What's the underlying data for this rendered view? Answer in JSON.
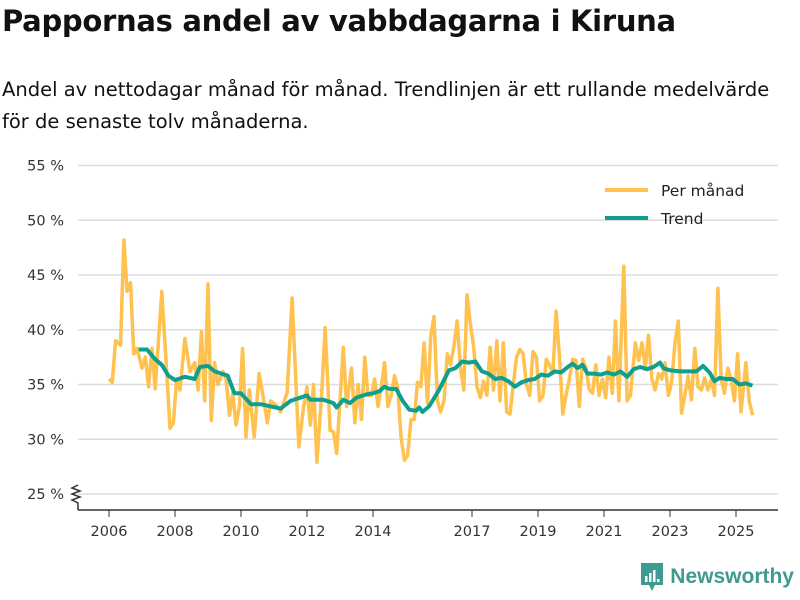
{
  "title": "Pappornas andel av vabbdagarna i Kiruna",
  "subtitle": "Andel av nettodagar månad för månad. Trendlinjen är ett rullande medelvärde för de senaste tolv månaderna.",
  "brand": "Newsworthy",
  "colors": {
    "monthly": "#ffc14f",
    "trend": "#0e9f8f",
    "grid": "#dddddd",
    "axis": "#333333"
  },
  "chart_data": {
    "type": "line",
    "title": "Pappornas andel av vabbdagarna i Kiruna",
    "xlabel": "",
    "ylabel": "",
    "ylim": [
      25,
      55
    ],
    "xlim": [
      2005.05,
      2026.3
    ],
    "yticks": [
      25,
      30,
      35,
      40,
      45,
      50,
      55
    ],
    "ytick_labels": [
      "25 %",
      "30 %",
      "35 %",
      "40 %",
      "45 %",
      "50 %",
      "55 %"
    ],
    "xticks": [
      2006,
      2008,
      2010,
      2012,
      2014,
      2017,
      2019,
      2021,
      2023,
      2025
    ],
    "xtick_labels": [
      "2006",
      "2008",
      "2010",
      "2012",
      "2014",
      "2017",
      "2019",
      "2021",
      "2023",
      "2025"
    ],
    "grid": true,
    "legend_position": "top-right",
    "series": [
      {
        "name": "Per månad",
        "x": [
          2006.0,
          2006.1,
          2006.2,
          2006.35,
          2006.45,
          2006.55,
          2006.65,
          2006.75,
          2006.85,
          2007.0,
          2007.1,
          2007.2,
          2007.3,
          2007.4,
          2007.6,
          2007.75,
          2007.85,
          2007.95,
          2008.05,
          2008.15,
          2008.3,
          2008.45,
          2008.6,
          2008.7,
          2008.8,
          2008.9,
          2009.0,
          2009.1,
          2009.2,
          2009.3,
          2009.45,
          2009.55,
          2009.65,
          2009.75,
          2009.85,
          2009.95,
          2010.05,
          2010.15,
          2010.25,
          2010.4,
          2010.55,
          2010.7,
          2010.8,
          2010.9,
          2011.1,
          2011.2,
          2011.4,
          2011.55,
          2011.75,
          2011.9,
          2012.0,
          2012.1,
          2012.2,
          2012.3,
          2012.45,
          2012.55,
          2012.7,
          2012.8,
          2012.9,
          2013.0,
          2013.1,
          2013.2,
          2013.35,
          2013.45,
          2013.55,
          2013.65,
          2013.75,
          2013.85,
          2013.95,
          2014.05,
          2014.15,
          2014.25,
          2014.35,
          2014.45,
          2014.55,
          2014.65,
          2014.75,
          2014.85,
          2014.95,
          2015.05,
          2015.15,
          2015.25,
          2015.35,
          2015.45,
          2015.55,
          2015.65,
          2015.75,
          2015.85,
          2015.95,
          2016.05,
          2016.15,
          2016.25,
          2016.35,
          2016.45,
          2016.55,
          2016.65,
          2016.75,
          2016.85,
          2016.95,
          2017.05,
          2017.15,
          2017.25,
          2017.35,
          2017.45,
          2017.55,
          2017.65,
          2017.75,
          2017.85,
          2017.95,
          2018.05,
          2018.15,
          2018.25,
          2018.35,
          2018.45,
          2018.55,
          2018.65,
          2018.75,
          2018.85,
          2018.95,
          2019.05,
          2019.15,
          2019.25,
          2019.35,
          2019.45,
          2019.55,
          2019.65,
          2019.75,
          2019.85,
          2019.95,
          2020.05,
          2020.15,
          2020.25,
          2020.35,
          2020.45,
          2020.55,
          2020.65,
          2020.75,
          2020.85,
          2020.95,
          2021.05,
          2021.15,
          2021.25,
          2021.35,
          2021.45,
          2021.6,
          2021.7,
          2021.8,
          2021.95,
          2022.05,
          2022.15,
          2022.25,
          2022.35,
          2022.45,
          2022.55,
          2022.65,
          2022.75,
          2022.85,
          2022.95,
          2023.05,
          2023.15,
          2023.25,
          2023.35,
          2023.45,
          2023.55,
          2023.65,
          2023.75,
          2023.85,
          2023.95,
          2024.05,
          2024.15,
          2024.25,
          2024.35,
          2024.45,
          2024.55,
          2024.65,
          2024.75,
          2024.85,
          2024.95,
          2025.05,
          2025.15,
          2025.3,
          2025.4,
          2025.5
        ],
        "values": [
          35.5,
          35.2,
          39,
          38.6,
          48.2,
          43.5,
          44.3,
          37.8,
          38.3,
          36.5,
          37.5,
          34.8,
          38.3,
          34.6,
          43.5,
          36,
          31,
          31.5,
          35.5,
          34.5,
          39.2,
          36.2,
          37,
          34.5,
          39.8,
          33.5,
          44.2,
          31.7,
          37,
          35,
          36.2,
          35.5,
          32.2,
          34.2,
          31.3,
          33,
          38.3,
          30.2,
          34.5,
          30.2,
          36,
          33.4,
          31.5,
          33.5,
          33,
          32.5,
          34.3,
          42.9,
          29.3,
          33,
          34.8,
          31.3,
          35,
          27.9,
          34.5,
          40.2,
          30.8,
          30.7,
          28.7,
          33.5,
          38.4,
          33,
          36.5,
          31.5,
          35,
          31.8,
          37.5,
          34,
          34,
          35.5,
          33,
          34.8,
          37,
          33,
          34,
          35.8,
          34.7,
          30.2,
          28.1,
          28.5,
          31.8,
          31.8,
          35.2,
          34.8,
          38.8,
          33.3,
          39.5,
          41.2,
          33.5,
          32.5,
          33.5,
          37.8,
          36.8,
          38.5,
          40.8,
          36.5,
          34.5,
          43.2,
          40.5,
          38.5,
          34.8,
          33.8,
          35.3,
          34,
          38.4,
          34.5,
          39,
          33.5,
          38.8,
          32.5,
          32.3,
          35,
          37.5,
          38.2,
          37.8,
          35,
          34,
          38,
          37.5,
          33.5,
          34,
          37.3,
          36.8,
          36,
          41.7,
          37.5,
          32.3,
          34,
          35.5,
          37.3,
          37.2,
          33,
          37.3,
          36.5,
          34.6,
          34.2,
          36.8,
          34,
          35.5,
          33.8,
          37.5,
          34.2,
          40.8,
          33.5,
          45.8,
          33.5,
          34,
          38.8,
          37.2,
          38.8,
          36.5,
          39.5,
          35.5,
          34.5,
          36,
          35.5,
          37,
          34,
          35.2,
          38.8,
          40.8,
          32.4,
          34,
          35.8,
          33.6,
          38.3,
          34.8,
          34.5,
          35.6,
          34.5,
          35.5,
          34,
          43.8,
          35.5,
          34.2,
          36.5,
          35.5,
          33.5,
          37.8,
          32.5,
          37,
          33.5,
          32.2
        ]
      },
      {
        "name": "Trend",
        "x": [
          2006.9,
          2007.15,
          2007.4,
          2007.6,
          2007.8,
          2008.0,
          2008.3,
          2008.6,
          2008.75,
          2009.0,
          2009.2,
          2009.6,
          2009.8,
          2010.0,
          2010.3,
          2010.6,
          2010.9,
          2011.2,
          2011.5,
          2011.8,
          2012.0,
          2012.1,
          2012.5,
          2012.8,
          2012.9,
          2013.1,
          2013.3,
          2013.5,
          2013.8,
          2014.0,
          2014.2,
          2014.35,
          2014.5,
          2014.7,
          2014.9,
          2015.1,
          2015.3,
          2015.4,
          2015.5,
          2015.7,
          2016.0,
          2016.3,
          2016.5,
          2016.7,
          2016.9,
          2017.1,
          2017.3,
          2017.5,
          2017.7,
          2017.9,
          2018.1,
          2018.3,
          2018.5,
          2018.7,
          2018.9,
          2019.1,
          2019.3,
          2019.5,
          2019.7,
          2019.9,
          2020.05,
          2020.2,
          2020.35,
          2020.5,
          2020.7,
          2020.9,
          2021.1,
          2021.3,
          2021.5,
          2021.7,
          2021.9,
          2022.1,
          2022.3,
          2022.5,
          2022.7,
          2022.8,
          2023.0,
          2023.3,
          2023.5,
          2023.8,
          2024.0,
          2024.2,
          2024.35,
          2024.5,
          2024.7,
          2024.9,
          2025.1,
          2025.3,
          2025.5
        ],
        "values": [
          38.2,
          38.2,
          37.3,
          36.8,
          35.8,
          35.4,
          35.7,
          35.5,
          36.6,
          36.7,
          36.2,
          35.8,
          34.2,
          34.2,
          33.2,
          33.2,
          33,
          32.8,
          33.5,
          33.8,
          34,
          33.6,
          33.6,
          33.3,
          32.9,
          33.6,
          33.3,
          33.8,
          34.1,
          34.2,
          34.4,
          34.8,
          34.6,
          34.6,
          33.5,
          32.7,
          32.6,
          32.9,
          32.5,
          33,
          34.5,
          36.3,
          36.5,
          37.1,
          37,
          37.1,
          36.2,
          36,
          35.5,
          35.6,
          35.3,
          34.8,
          35.2,
          35.4,
          35.5,
          35.9,
          35.8,
          36.2,
          36.1,
          36.6,
          36.9,
          36.5,
          36.8,
          36,
          36,
          35.9,
          36.1,
          35.9,
          36.2,
          35.7,
          36.4,
          36.6,
          36.4,
          36.6,
          37,
          36.5,
          36.3,
          36.2,
          36.2,
          36.2,
          36.7,
          36.1,
          35.3,
          35.6,
          35.5,
          35.5,
          35,
          35.1,
          34.9
        ]
      }
    ]
  }
}
